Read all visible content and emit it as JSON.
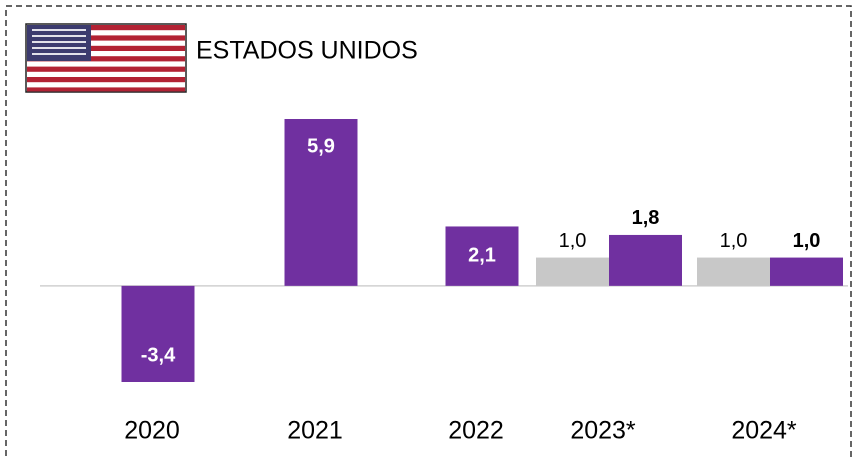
{
  "chart_data": {
    "type": "bar",
    "title": "ESTADOS UNIDOS",
    "categories": [
      "2020",
      "2021",
      "2022",
      "2023*",
      "2024*"
    ],
    "series": [
      {
        "color": "#c8c8c8",
        "values": [
          null,
          null,
          null,
          1.0,
          1.0
        ],
        "value_labels": [
          null,
          null,
          null,
          "1,0",
          "1,0"
        ]
      },
      {
        "color": "#7030a0",
        "values": [
          -3.4,
          5.9,
          2.1,
          1.8,
          1.0
        ],
        "value_labels": [
          "-3,4",
          "5,9",
          "2,1",
          "1,8",
          "1,0"
        ]
      }
    ]
  }
}
